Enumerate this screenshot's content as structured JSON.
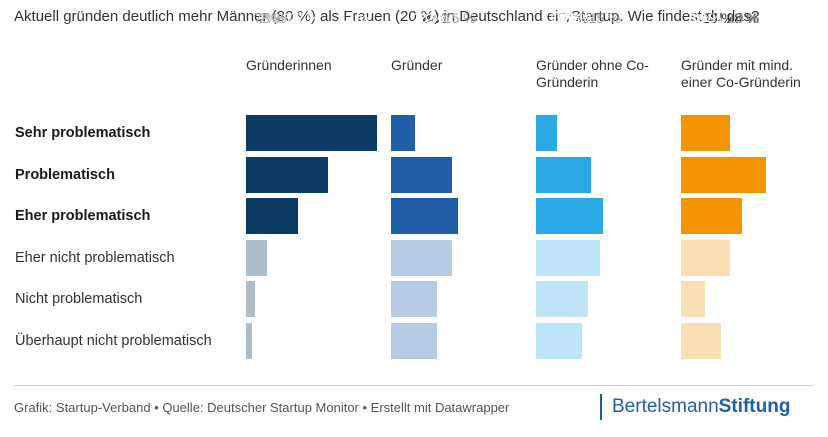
{
  "title": "Aktuell gründen deutlich mehr Männer (80 %) als Frauen (20 %) in Deutschland ein Startup. Wie findest du das?",
  "footer": {
    "text": "Grafik: Startup-Verband • Quelle: Deutscher Startup Monitor • Erstellt mit Datawrapper",
    "brand_regular": "Bertelsmann",
    "brand_bold": "Stiftung"
  },
  "chart_data": {
    "type": "bar",
    "orientation": "horizontal",
    "layout": "small-multiples",
    "title": "Aktuell gründen deutlich mehr Männer (80 %) als Frauen (20 %) in Deutschland ein Startup. Wie findest du das?",
    "value_suffix": " %",
    "categories": [
      "Sehr problematisch",
      "Problematisch",
      "Eher problematisch",
      "Eher nicht problematisch",
      "Nicht problematisch",
      "Überhaupt nicht problematisch"
    ],
    "emphasized_categories": 3,
    "series": [
      {
        "name": "Gründerinnen",
        "values": [
          43,
          27,
          17,
          7,
          3,
          2
        ],
        "color": "#0d3b66",
        "muted_color": "#aebdca",
        "label_color": "#ffffff",
        "muted_label_color": "#b0b8c0"
      },
      {
        "name": "Gründer",
        "values": [
          8,
          20,
          22,
          20,
          15,
          15
        ],
        "color": "#1f5fa8",
        "muted_color": "#b8cbe6",
        "label_color": "#ffffff",
        "muted_label_color": "#ffffff"
      },
      {
        "name": "Gründer ohne Co-Gründerin",
        "values": [
          7,
          18,
          22,
          21,
          17,
          15
        ],
        "color": "#2aa9e6",
        "muted_color": "#bfe4f7",
        "label_color": "#ffffff",
        "muted_label_color": "#ffffff"
      },
      {
        "name": "Gründer mit mind. einer Co-Gründerin",
        "values": [
          16,
          28,
          20,
          16,
          8,
          13
        ],
        "color": "#f29400",
        "muted_color": "#fbdfb4",
        "label_color": "#333333",
        "muted_label_color": "#ffffff"
      }
    ],
    "xlim": [
      0,
      100
    ],
    "grid": false
  }
}
